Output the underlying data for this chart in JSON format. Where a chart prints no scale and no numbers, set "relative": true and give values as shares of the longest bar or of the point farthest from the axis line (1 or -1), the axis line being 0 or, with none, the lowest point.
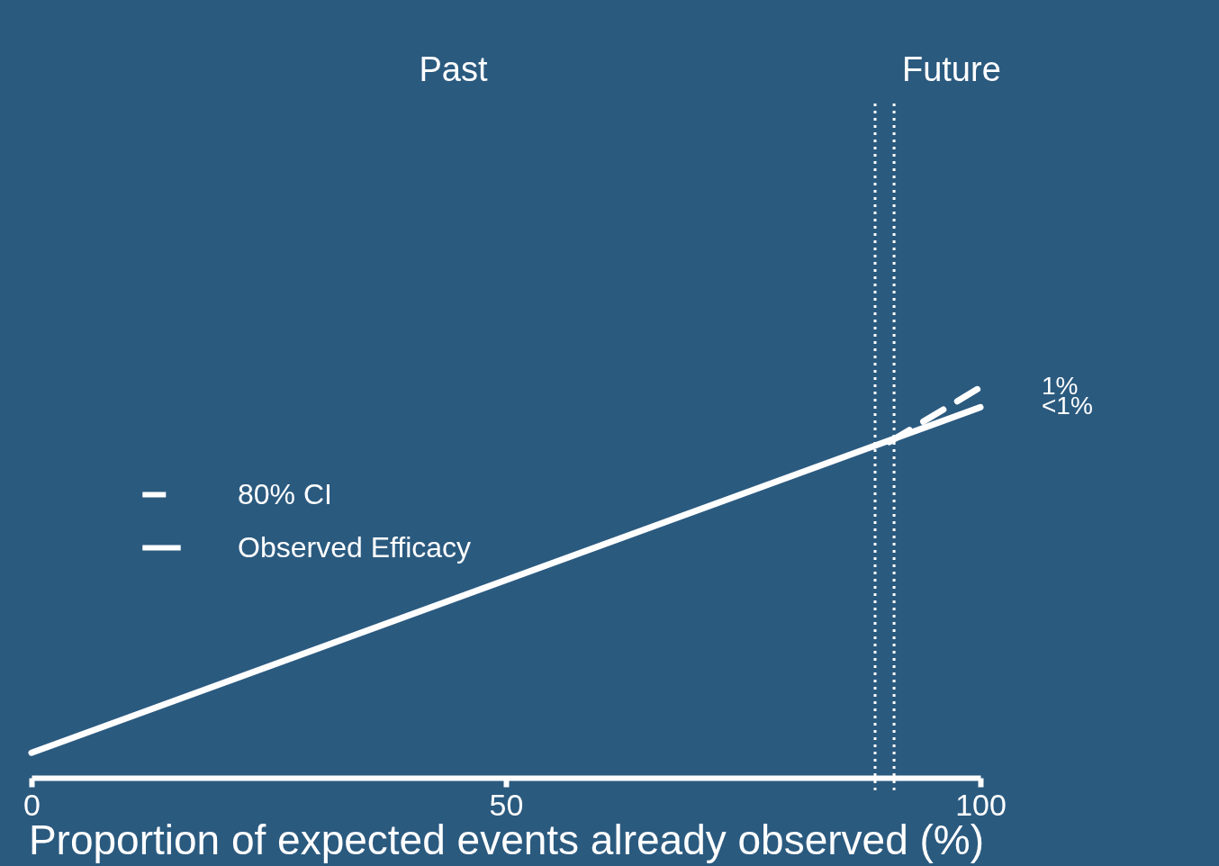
{
  "chart_data": {
    "type": "line",
    "relative": true,
    "xlabel": "Proportion of expected events already observed (%)",
    "xlim": [
      0,
      100
    ],
    "xticks": [
      0,
      50,
      100
    ],
    "legend": "left",
    "grid": false,
    "marker": "none",
    "series": [
      {
        "name": "80% CI",
        "color": "#ffffff",
        "line_style": "dashed",
        "x": [
          90.4,
          100
        ],
        "values": [
          0.86,
          1
        ]
      },
      {
        "name": "Observed Efficacy",
        "color": "#ffffff",
        "line_style": "solid",
        "x": [
          0,
          100
        ],
        "values": [
          0.064,
          0.949
        ]
      }
    ],
    "ref_lines": [
      {
        "axis": "x",
        "value": 88.9,
        "line_style": "dotted",
        "color": "#ffffff"
      },
      {
        "axis": "x",
        "value": 90.9,
        "line_style": "dotted",
        "color": "#ffffff"
      }
    ],
    "annotations": [
      "Past",
      "Future",
      {
        "text": "1%",
        "x": 100,
        "y": 1
      },
      {
        "text": "<1%",
        "x": 100,
        "y": 0.949
      }
    ]
  }
}
